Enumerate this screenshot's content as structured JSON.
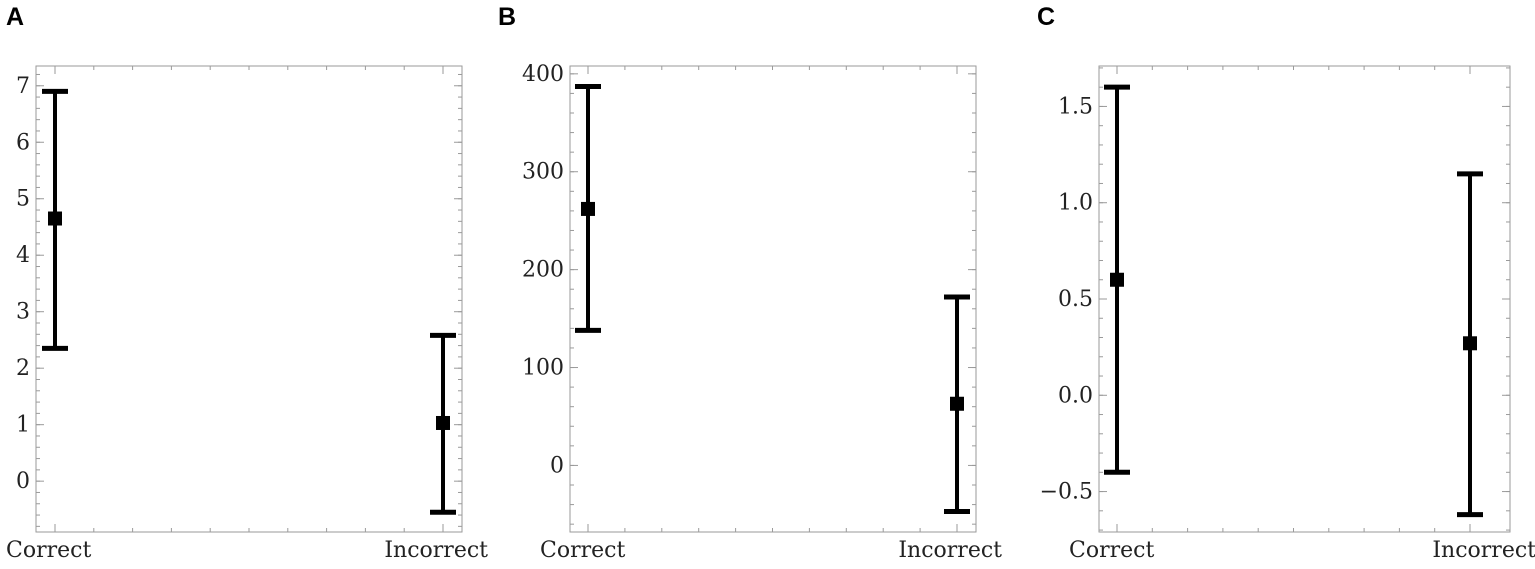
{
  "chart_data": [
    {
      "type": "errorbar",
      "panel": "A",
      "categories": [
        "Correct",
        "Incorrect"
      ],
      "series": [
        {
          "values": [
            4.65,
            1.03
          ],
          "lower": [
            2.35,
            -0.55
          ],
          "upper": [
            6.9,
            2.58
          ]
        }
      ],
      "yticks": [
        "0",
        "1",
        "2",
        "3",
        "4",
        "5",
        "6",
        "7"
      ],
      "ylim": [
        -0.9,
        7.35
      ],
      "xlabel": "",
      "ylabel": ""
    },
    {
      "type": "errorbar",
      "panel": "B",
      "categories": [
        "Correct",
        "Incorrect"
      ],
      "series": [
        {
          "values": [
            262,
            63
          ],
          "lower": [
            138,
            -47
          ],
          "upper": [
            387,
            172
          ]
        }
      ],
      "yticks": [
        "0",
        "100",
        "200",
        "300",
        "400"
      ],
      "ylim": [
        -68,
        408
      ],
      "xlabel": "",
      "ylabel": ""
    },
    {
      "type": "errorbar",
      "panel": "C",
      "categories": [
        "Correct",
        "Incorrect"
      ],
      "series": [
        {
          "values": [
            0.6,
            0.27
          ],
          "lower": [
            -0.4,
            -0.62
          ],
          "upper": [
            1.6,
            1.15
          ]
        }
      ],
      "yticks": [
        "−0.5",
        "0.0",
        "0.5",
        "1.0",
        "1.5"
      ],
      "ytick_values": [
        -0.5,
        0,
        0.5,
        1,
        1.5
      ],
      "ylim": [
        -0.71,
        1.71
      ],
      "xlabel": "",
      "ylabel": ""
    }
  ]
}
